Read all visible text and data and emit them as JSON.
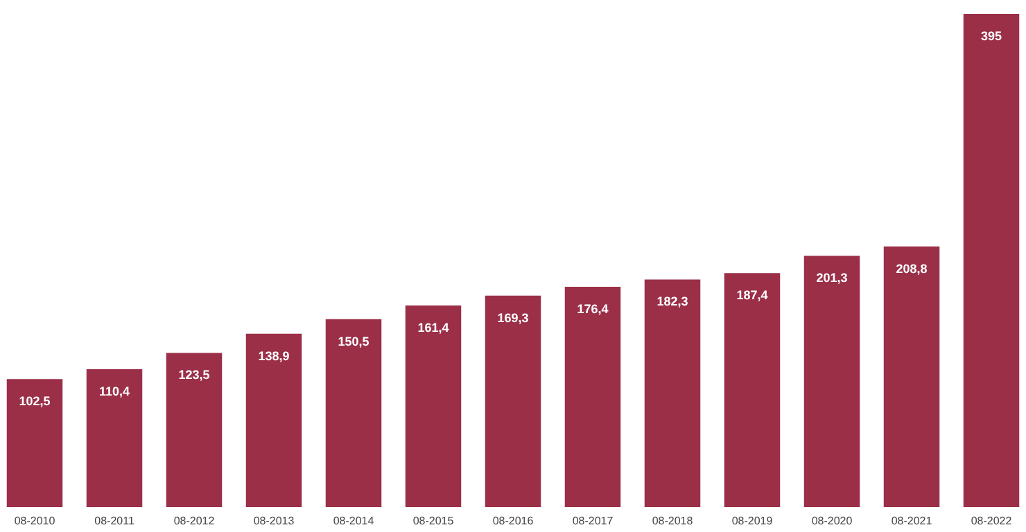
{
  "chart_data": {
    "type": "bar",
    "categories": [
      "08-2010",
      "08-2011",
      "08-2012",
      "08-2013",
      "08-2014",
      "08-2015",
      "08-2016",
      "08-2017",
      "08-2018",
      "08-2019",
      "08-2020",
      "08-2021",
      "08-2022"
    ],
    "values": [
      102.5,
      110.4,
      123.5,
      138.9,
      150.5,
      161.4,
      169.3,
      176.4,
      182.3,
      187.4,
      201.3,
      208.8,
      395
    ],
    "value_labels": [
      "102,5",
      "110,4",
      "123,5",
      "138,9",
      "150,5",
      "161,4",
      "169,3",
      "176,4",
      "182,3",
      "187,4",
      "201,3",
      "208,8",
      "395"
    ],
    "color": "#9b2f48"
  }
}
